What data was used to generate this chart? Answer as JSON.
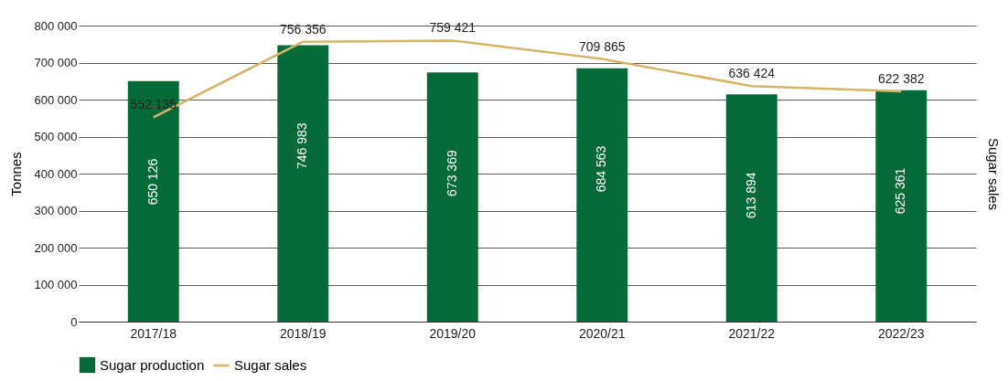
{
  "chart_data": {
    "type": "bar",
    "ylabel": "Tonnes",
    "y2label": "Sugar sales",
    "categories": [
      "2017/18",
      "2018/19",
      "2019/20",
      "2020/21",
      "2021/22",
      "2022/23"
    ],
    "series": [
      {
        "name": "Sugar production",
        "color": "#046a38",
        "values": [
          650126,
          746983,
          673369,
          684563,
          613894,
          625361
        ],
        "value_labels": [
          "650 126",
          "746 983",
          "673 369",
          "684 563",
          "613 894",
          "625 361"
        ]
      },
      {
        "name": "Sugar sales",
        "type": "line",
        "color": "#d4b56a",
        "values": [
          552135,
          756356,
          759421,
          709865,
          636424,
          622382
        ],
        "value_labels": [
          "552 135",
          "756 356",
          "759 421",
          "709 865",
          "636 424",
          "622 382"
        ]
      }
    ],
    "ylim": [
      0,
      800000
    ],
    "yticks": [
      {
        "value": 0,
        "label": "0"
      },
      {
        "value": 100000,
        "label": "100 000"
      },
      {
        "value": 200000,
        "label": "200 000"
      },
      {
        "value": 300000,
        "label": "300 000"
      },
      {
        "value": 400000,
        "label": "400 000"
      },
      {
        "value": 500000,
        "label": "500 000"
      },
      {
        "value": 600000,
        "label": "600 000"
      },
      {
        "value": 700000,
        "label": "700 000"
      },
      {
        "value": 800000,
        "label": "800 000"
      }
    ],
    "grid": "y",
    "legend": "bottom",
    "line_style": "solid",
    "marker": "none"
  }
}
